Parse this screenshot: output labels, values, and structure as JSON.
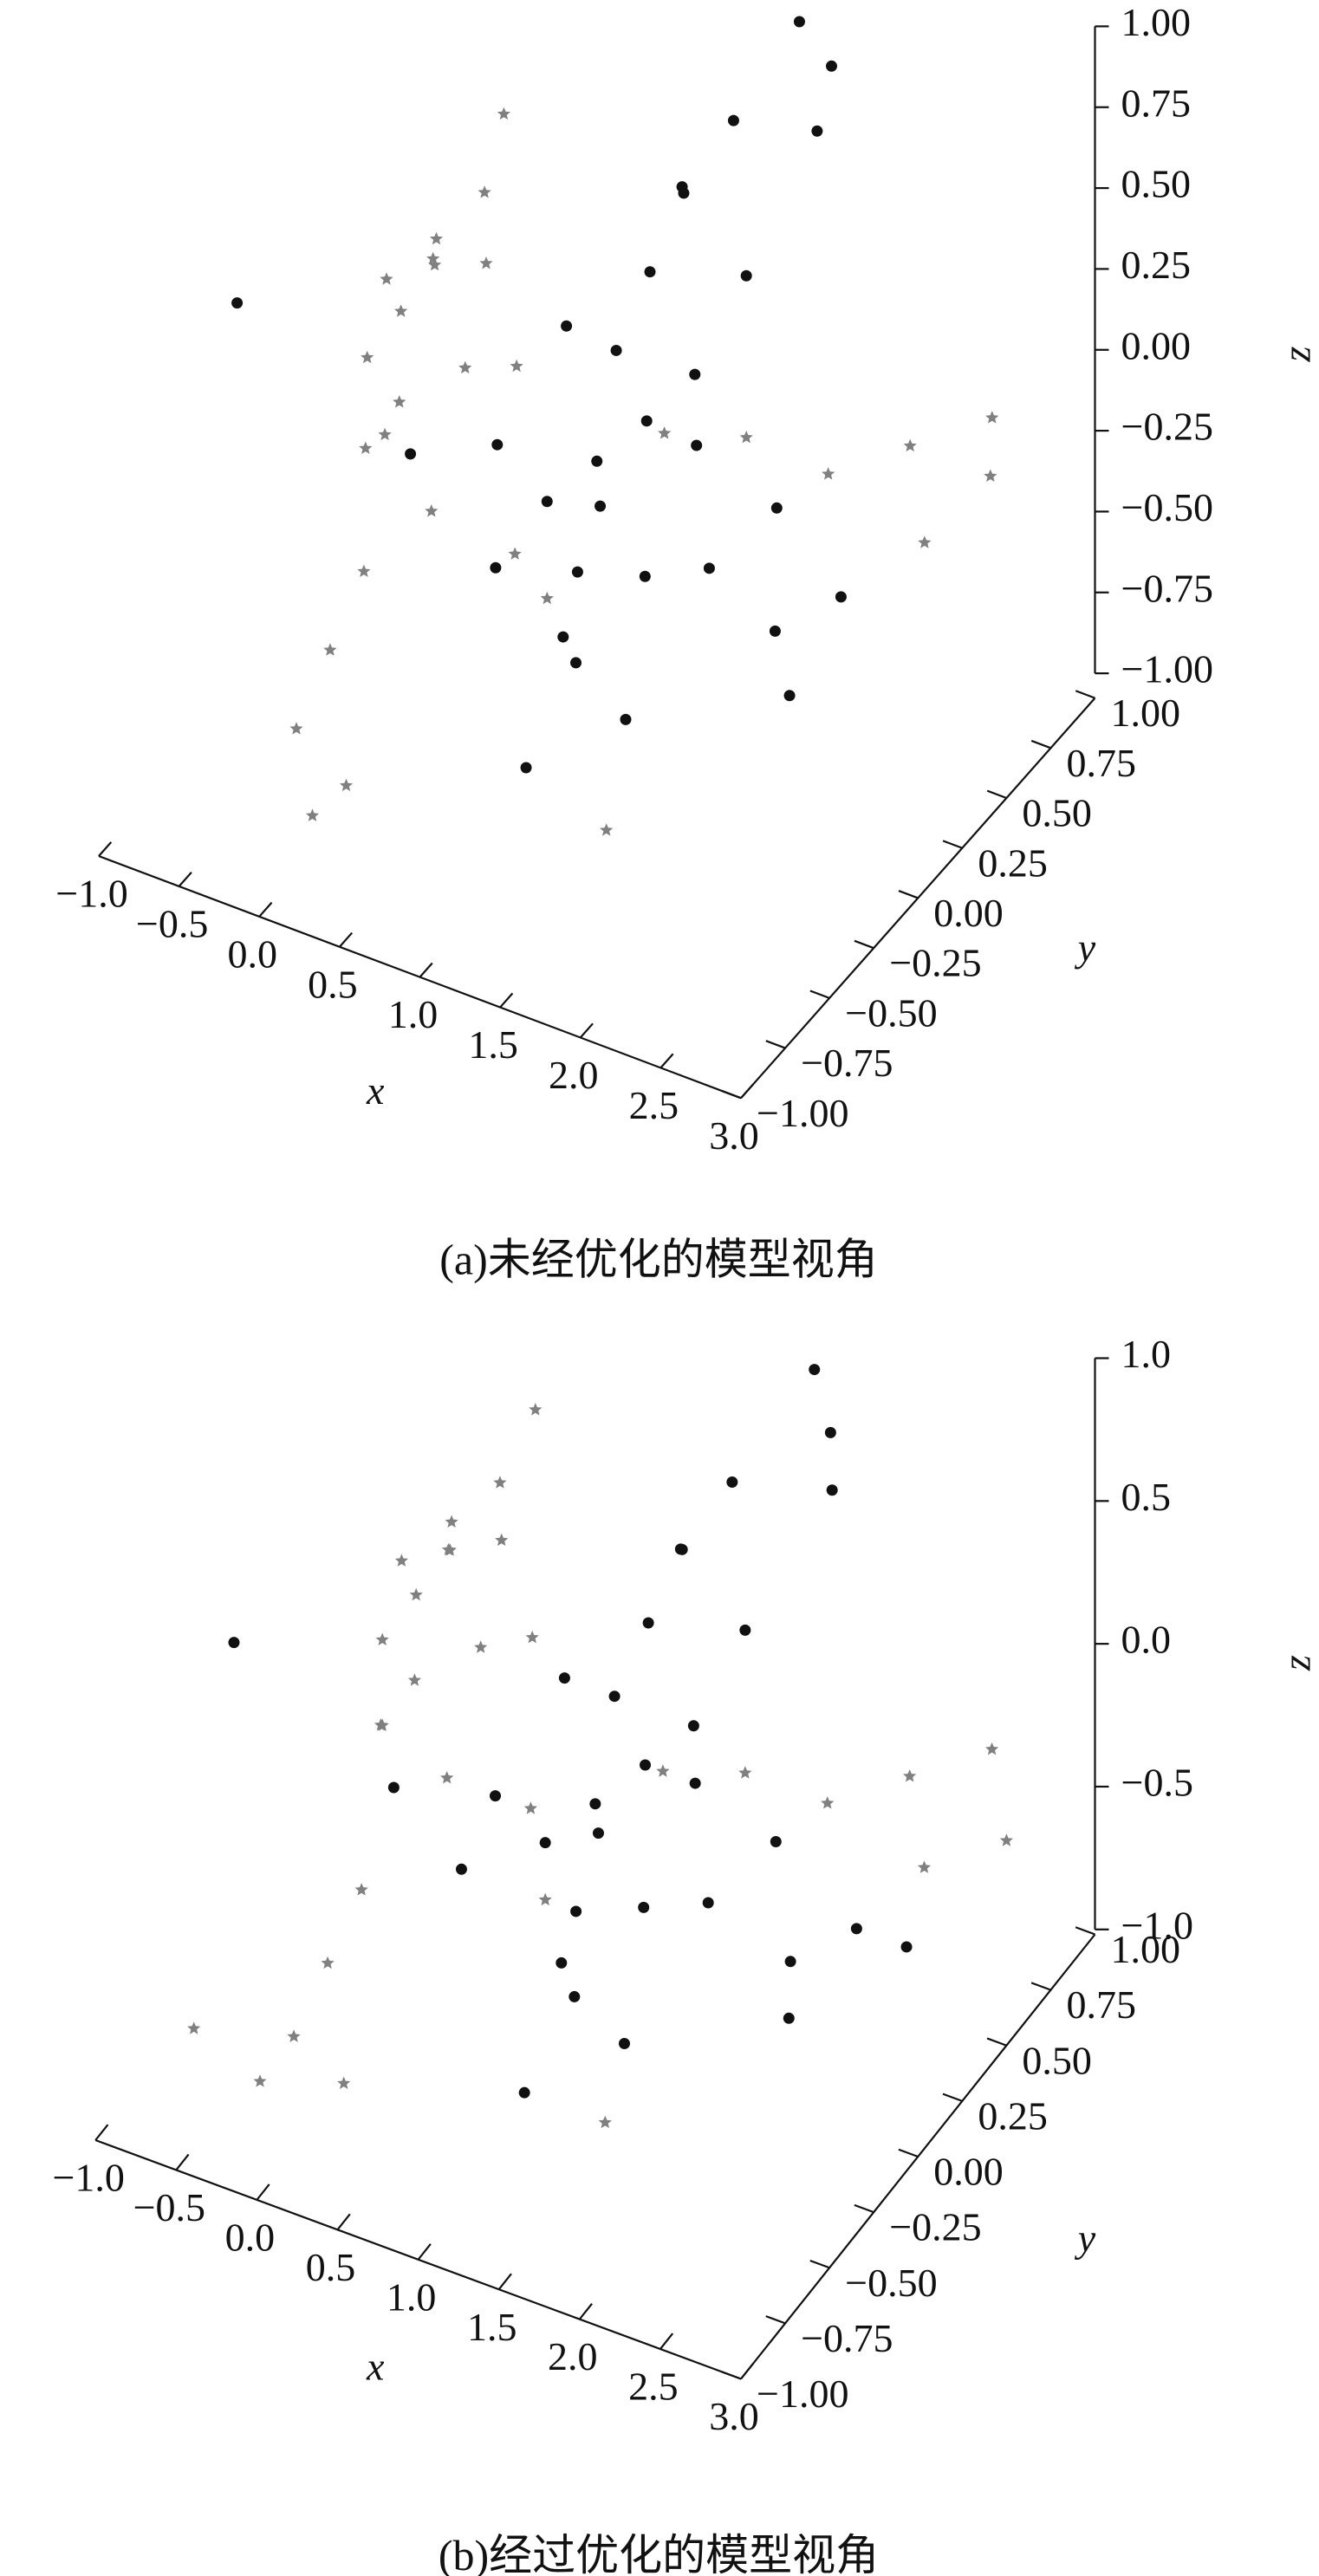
{
  "chart_data": [
    {
      "type": "scatter3d",
      "caption": "(a)未经优化的模型视角",
      "xlabel": "x",
      "ylabel": "y",
      "zlabel": "z",
      "xlim": [
        -1,
        3
      ],
      "ylim": [
        -1,
        1
      ],
      "zlim": [
        -1,
        1
      ],
      "xticks": [
        {
          "value": -1,
          "label": "−1.0"
        },
        {
          "value": -0.5,
          "label": "−0.5"
        },
        {
          "value": 0,
          "label": "0.0"
        },
        0.5,
        {
          "value": 1,
          "label": "1.0"
        },
        1.5,
        {
          "value": 2,
          "label": "2.0"
        },
        2.5,
        {
          "value": 3,
          "label": "3.0"
        }
      ],
      "yticks": [
        {
          "value": -1,
          "label": "−1.00"
        },
        {
          "value": -0.75,
          "label": "−0.75"
        },
        {
          "value": -0.5,
          "label": "−0.50"
        },
        {
          "value": -0.25,
          "label": "−0.25"
        },
        {
          "value": 0,
          "label": "0.00"
        },
        0.25,
        {
          "value": 0.5,
          "label": "0.50"
        },
        0.75,
        {
          "value": 1,
          "label": "1.00"
        }
      ],
      "zticks": [
        {
          "value": -1,
          "label": "−1.00"
        },
        {
          "value": -0.75,
          "label": "−0.75"
        },
        {
          "value": -0.5,
          "label": "−0.50"
        },
        {
          "value": -0.25,
          "label": "−0.25"
        },
        {
          "value": 0,
          "label": "0.00"
        },
        0.25,
        {
          "value": 0.5,
          "label": "0.50"
        },
        0.75,
        {
          "value": 1,
          "label": "1.00"
        }
      ],
      "series": [
        {
          "color": "#111111",
          "marker": "circle",
          "x": [
            1.0,
            1.2,
            0.8,
            1.1,
            0.9,
            1.3,
            0.7,
            1.4,
            1.0,
            1.2,
            0.6,
            1.5,
            0.9,
            1.1,
            1.6,
            1.3,
            0.8,
            1.7,
            1.9,
            2.0,
            2.3,
            2.2,
            1.4,
            1.0,
            0.5,
            -0.8,
            1.8,
            1.6,
            1.2,
            0.7,
            1.6
          ],
          "y": [
            0.0,
            0.1,
            -0.1,
            -0.2,
            0.2,
            0.0,
            0.1,
            0.2,
            0.3,
            -0.3,
            -0.2,
            0.1,
            -0.1,
            0.4,
            0.3,
            0.5,
            0.2,
            0.0,
            0.2,
            0.1,
            0.2,
            0.0,
            -0.2,
            -0.4,
            -0.6,
            -0.4,
            0.6,
            0.7,
            0.3,
            -0.3,
            0.6
          ],
          "z": [
            -0.1,
            0.0,
            -0.2,
            -0.3,
            0.1,
            -0.4,
            0.2,
            -0.1,
            0.3,
            -0.5,
            0.0,
            0.2,
            -0.6,
            0.5,
            0.4,
            0.7,
            -0.4,
            -0.3,
            -0.2,
            -0.5,
            -0.4,
            -0.6,
            -0.7,
            -0.8,
            0.2,
            0.3,
            0.9,
            0.6,
            0.6,
            -0.3,
            1.0
          ]
        },
        {
          "color": "#808080",
          "marker": "star",
          "x": [
            0.0,
            0.1,
            -0.1,
            0.2,
            0.0,
            0.1,
            -0.2,
            0.3,
            0.2,
            0.0,
            -0.1,
            0.1,
            0.0,
            -0.1,
            0.1,
            0.0,
            0.4,
            0.5,
            0.3,
            0.6,
            1.6,
            2.0,
            2.4,
            2.6,
            2.8,
            2.9,
            1.2,
            0.8,
            1.5,
            0.2
          ],
          "y": [
            -0.2,
            -0.1,
            -0.3,
            -0.2,
            0.0,
            -0.3,
            -0.1,
            0.0,
            0.1,
            -0.4,
            -0.2,
            -0.5,
            -0.6,
            -0.7,
            -0.6,
            -0.7,
            -0.2,
            0.0,
            -0.3,
            -0.1,
            0.3,
            0.4,
            0.5,
            0.4,
            0.6,
            0.5,
            0.2,
            -0.1,
            -0.4,
            0.2
          ],
          "z": [
            0.3,
            0.4,
            0.2,
            0.5,
            0.4,
            0.1,
            0.3,
            0.6,
            0.3,
            0.0,
            -0.1,
            -0.3,
            -0.5,
            -0.7,
            -0.9,
            -0.95,
            0.2,
            0.1,
            -0.2,
            -0.4,
            -0.1,
            -0.2,
            -0.1,
            -0.3,
            0.0,
            -0.1,
            -0.1,
            -0.5,
            -0.9,
            0.7
          ]
        }
      ]
    },
    {
      "type": "scatter3d",
      "caption": "(b)经过优化的模型视角",
      "xlabel": "x",
      "ylabel": "y",
      "zlabel": "z",
      "xlim": [
        -1,
        3
      ],
      "ylim": [
        -1,
        1
      ],
      "zlim": [
        -1,
        1
      ],
      "xticks": [
        {
          "value": -1,
          "label": "−1.0"
        },
        {
          "value": -0.5,
          "label": "−0.5"
        },
        {
          "value": 0,
          "label": "0.0"
        },
        0.5,
        {
          "value": 1,
          "label": "1.0"
        },
        1.5,
        {
          "value": 2,
          "label": "2.0"
        },
        2.5,
        {
          "value": 3,
          "label": "3.0"
        }
      ],
      "yticks": [
        {
          "value": -1,
          "label": "−1.00"
        },
        {
          "value": -0.75,
          "label": "−0.75"
        },
        {
          "value": -0.5,
          "label": "−0.50"
        },
        {
          "value": -0.25,
          "label": "−0.25"
        },
        {
          "value": 0,
          "label": "0.00"
        },
        0.25,
        {
          "value": 0.5,
          "label": "0.50"
        },
        0.75,
        {
          "value": 1,
          "label": "1.00"
        }
      ],
      "zticks": [
        {
          "value": -1,
          "label": "−1.0"
        },
        {
          "value": -0.5,
          "label": "−0.5"
        },
        {
          "value": 0,
          "label": "0.0"
        },
        0.5,
        {
          "value": 1,
          "label": "1.0"
        }
      ],
      "series": [
        {
          "color": "#111111",
          "marker": "circle",
          "x": [
            1.0,
            1.2,
            0.8,
            1.1,
            0.9,
            1.3,
            0.7,
            1.4,
            1.0,
            1.2,
            0.6,
            1.5,
            0.9,
            1.1,
            1.6,
            1.3,
            0.8,
            1.7,
            1.9,
            2.1,
            2.4,
            2.2,
            1.4,
            1.0,
            0.3,
            -0.8,
            1.8,
            1.7,
            1.2,
            0.5,
            1.7,
            2.6
          ],
          "y": [
            0.0,
            0.1,
            -0.1,
            -0.2,
            0.2,
            0.0,
            0.1,
            0.2,
            0.3,
            -0.3,
            -0.2,
            0.1,
            -0.1,
            0.4,
            0.3,
            0.5,
            0.2,
            0.0,
            0.2,
            0.1,
            0.2,
            0.0,
            -0.2,
            -0.4,
            -0.5,
            -0.4,
            0.6,
            0.7,
            0.3,
            -0.3,
            0.6,
            0.3
          ],
          "z": [
            -0.2,
            -0.1,
            -0.3,
            -0.4,
            0.0,
            -0.5,
            0.1,
            -0.2,
            0.2,
            -0.6,
            -0.1,
            0.1,
            -0.7,
            0.4,
            0.3,
            0.6,
            -0.5,
            -0.4,
            -0.3,
            -0.6,
            -0.5,
            -0.7,
            -0.8,
            -0.9,
            0.1,
            0.3,
            0.8,
            0.5,
            0.5,
            -0.3,
            1.0,
            -0.6
          ]
        },
        {
          "color": "#808080",
          "marker": "star",
          "x": [
            0.0,
            0.1,
            -0.1,
            0.2,
            0.0,
            0.1,
            -0.2,
            0.3,
            0.2,
            0.0,
            -0.1,
            0.1,
            0.0,
            -0.1,
            0.1,
            -0.2,
            0.4,
            0.5,
            0.3,
            0.6,
            1.6,
            2.0,
            2.4,
            2.6,
            2.8,
            3.0,
            1.2,
            0.8,
            1.5,
            0.3,
            -0.5
          ],
          "y": [
            -0.1,
            0.0,
            -0.2,
            -0.1,
            0.1,
            -0.2,
            0.0,
            0.1,
            0.2,
            -0.3,
            -0.2,
            -0.5,
            -0.6,
            -0.7,
            -0.6,
            -0.8,
            -0.1,
            0.1,
            -0.2,
            0.0,
            0.3,
            0.4,
            0.5,
            0.4,
            0.6,
            0.5,
            0.2,
            -0.1,
            -0.4,
            0.3,
            -0.9
          ],
          "z": [
            0.4,
            0.5,
            0.3,
            0.6,
            0.5,
            0.2,
            0.4,
            0.7,
            0.4,
            0.1,
            0.0,
            -0.3,
            -0.5,
            -0.7,
            -0.9,
            -0.8,
            0.3,
            0.2,
            -0.1,
            -0.3,
            -0.2,
            -0.3,
            -0.2,
            -0.4,
            -0.1,
            -0.3,
            -0.2,
            -0.5,
            -0.9,
            0.8,
            -0.6
          ]
        }
      ]
    }
  ]
}
